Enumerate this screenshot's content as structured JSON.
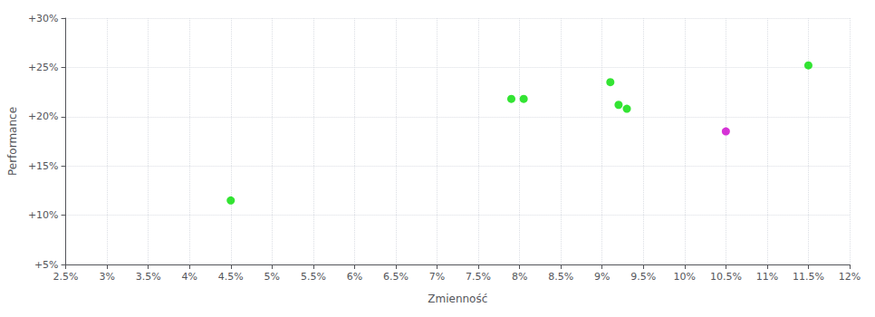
{
  "chart_data": {
    "type": "scatter",
    "xlabel": "Zmienność",
    "ylabel": "Performance",
    "xlim": [
      0.025,
      0.12
    ],
    "ylim": [
      0.05,
      0.3
    ],
    "xticks": [
      {
        "value": 0.025,
        "label": "2.5%"
      },
      {
        "value": 0.03,
        "label": "3%"
      },
      {
        "value": 0.035,
        "label": "3.5%"
      },
      {
        "value": 0.04,
        "label": "4%"
      },
      {
        "value": 0.045,
        "label": "4.5%"
      },
      {
        "value": 0.05,
        "label": "5%"
      },
      {
        "value": 0.055,
        "label": "5.5%"
      },
      {
        "value": 0.06,
        "label": "6%"
      },
      {
        "value": 0.065,
        "label": "6.5%"
      },
      {
        "value": 0.07,
        "label": "7%"
      },
      {
        "value": 0.075,
        "label": "7.5%"
      },
      {
        "value": 0.08,
        "label": "8%"
      },
      {
        "value": 0.085,
        "label": "8.5%"
      },
      {
        "value": 0.09,
        "label": "9%"
      },
      {
        "value": 0.095,
        "label": "9.5%"
      },
      {
        "value": 0.1,
        "label": "10%"
      },
      {
        "value": 0.105,
        "label": "10.5%"
      },
      {
        "value": 0.11,
        "label": "11%"
      },
      {
        "value": 0.115,
        "label": "11.5%"
      },
      {
        "value": 0.12,
        "label": "12%"
      }
    ],
    "yticks": [
      {
        "value": 0.05,
        "label": "+5%"
      },
      {
        "value": 0.1,
        "label": "+10%"
      },
      {
        "value": 0.15,
        "label": "+15%"
      },
      {
        "value": 0.2,
        "label": "+20%"
      },
      {
        "value": 0.25,
        "label": "+25%"
      },
      {
        "value": 0.3,
        "label": "+30%"
      }
    ],
    "grid": true,
    "marker": "circle",
    "series": [
      {
        "color": "#00dd00",
        "x": [
          0.045,
          0.079,
          0.0805,
          0.091,
          0.092,
          0.093,
          0.115
        ],
        "values": [
          0.115,
          0.218,
          0.218,
          0.235,
          0.212,
          0.208,
          0.252
        ]
      },
      {
        "color": "#cc00cc",
        "x": [
          0.105
        ],
        "values": [
          0.185
        ]
      }
    ]
  }
}
